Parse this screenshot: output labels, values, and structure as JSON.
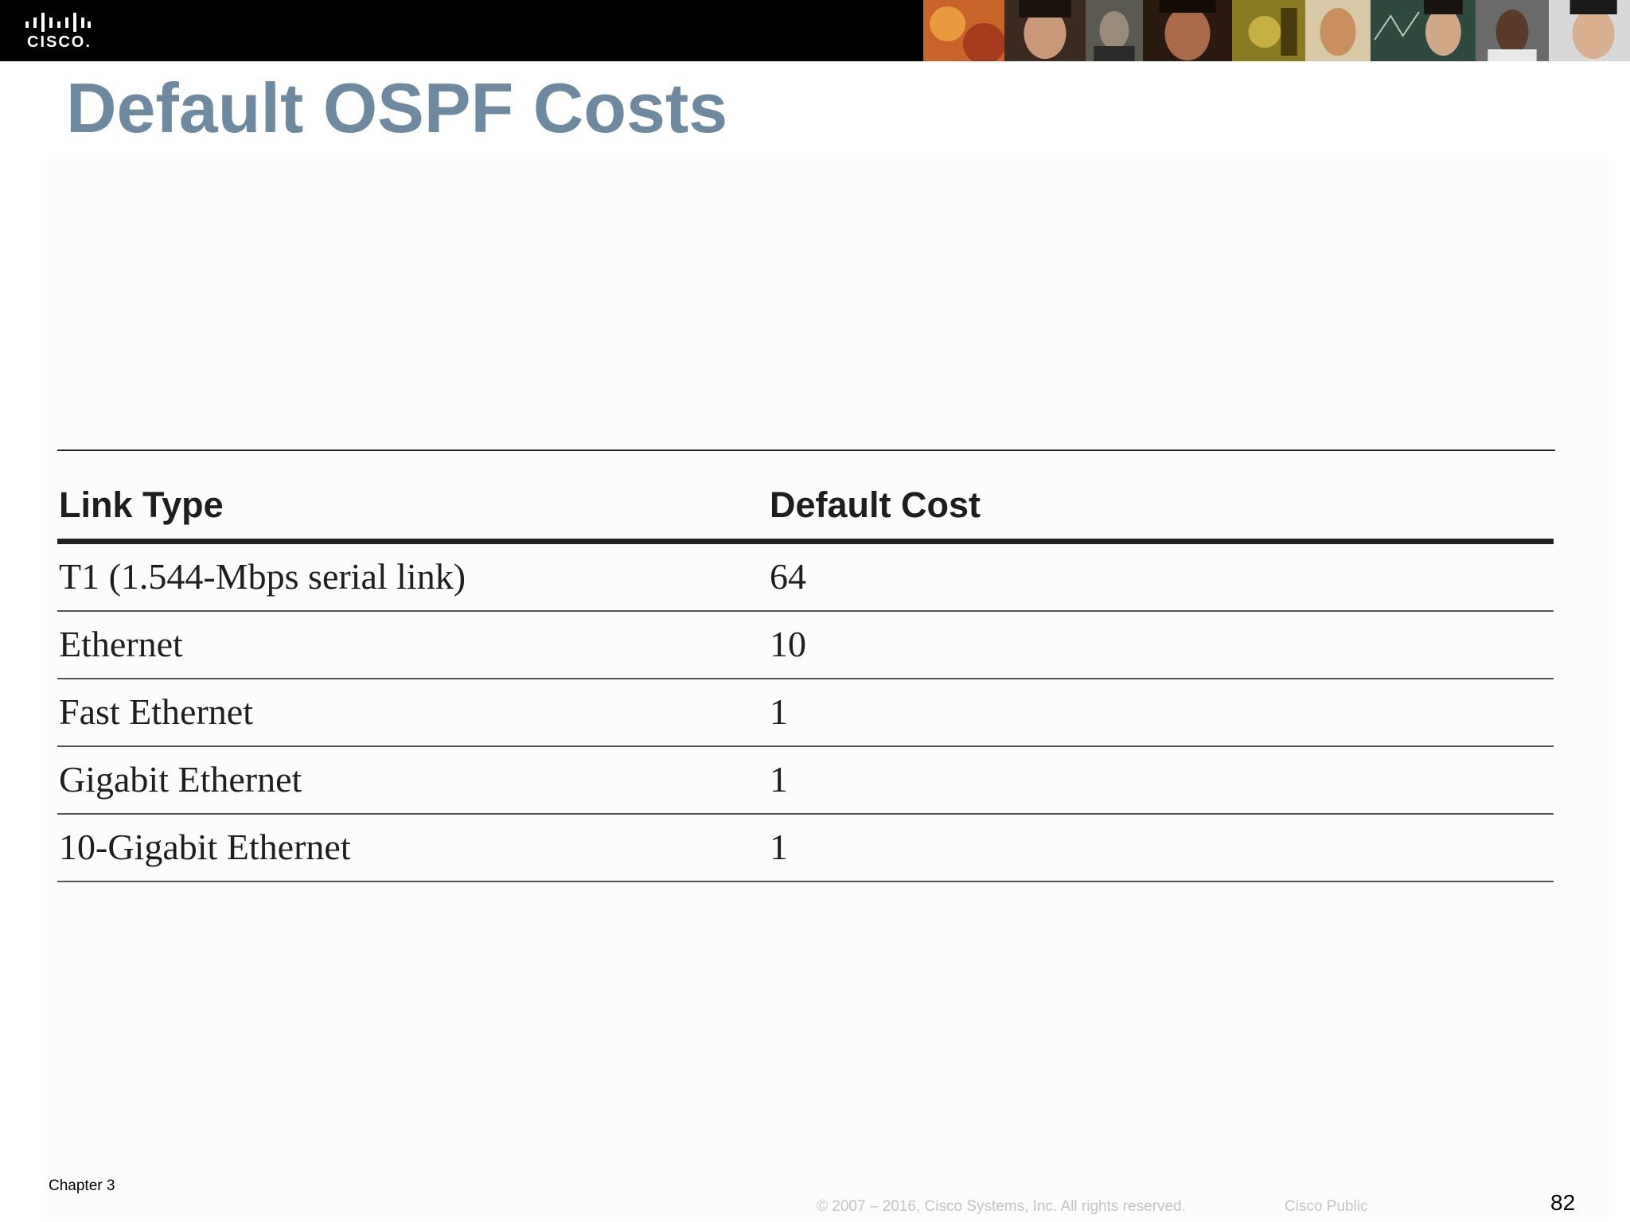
{
  "header": {
    "logo_text": "CISCO.",
    "photos": [
      "photo-1",
      "photo-2",
      "photo-3",
      "photo-4",
      "photo-5",
      "photo-6",
      "photo-7",
      "photo-8",
      "photo-9"
    ]
  },
  "title": "Default OSPF Costs",
  "table": {
    "columns": [
      "Link Type",
      "Default Cost"
    ],
    "rows": [
      [
        "T1 (1.544-Mbps serial link)",
        "64"
      ],
      [
        "Ethernet",
        "10"
      ],
      [
        "Fast Ethernet",
        "1"
      ],
      [
        "Gigabit Ethernet",
        "1"
      ],
      [
        "10-Gigabit Ethernet",
        "1"
      ]
    ]
  },
  "footer": {
    "chapter": "Chapter 3",
    "copyright": "© 2007 – 2016, Cisco Systems, Inc. All rights reserved.",
    "classification": "Cisco Public",
    "page_number": "82"
  },
  "colors": {
    "title": "#6e8aa0",
    "topbar": "#000000",
    "footer_text": "#c4c4c4"
  }
}
